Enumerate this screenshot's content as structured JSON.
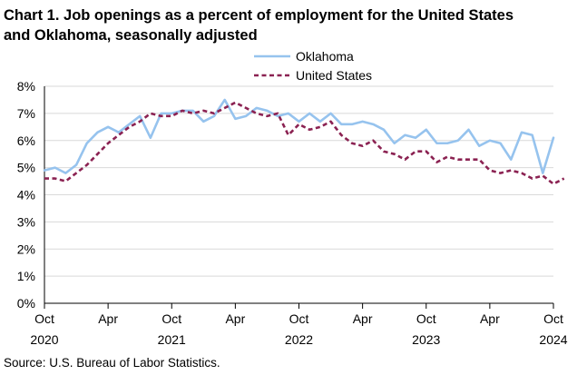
{
  "chart_data": {
    "type": "line",
    "title_line1": "Chart 1. Job openings as a percent of employment for the United States",
    "title_line2": "and Oklahoma, seasonally adjusted",
    "source": "Source: U.S. Bureau of Labor Statistics.",
    "ylim": [
      0,
      8
    ],
    "yticks": [
      "0%",
      "1%",
      "2%",
      "3%",
      "4%",
      "5%",
      "6%",
      "7%",
      "8%"
    ],
    "xticks": [
      {
        "month": "Oct",
        "year": "2020",
        "index": 0
      },
      {
        "month": "Apr",
        "year": "",
        "index": 6
      },
      {
        "month": "Oct",
        "year": "2021",
        "index": 12
      },
      {
        "month": "Apr",
        "year": "",
        "index": 18
      },
      {
        "month": "Oct",
        "year": "2022",
        "index": 24
      },
      {
        "month": "Apr",
        "year": "",
        "index": 30
      },
      {
        "month": "Oct",
        "year": "2023",
        "index": 36
      },
      {
        "month": "Apr",
        "year": "",
        "index": 42
      },
      {
        "month": "Oct",
        "year": "2024",
        "index": 48
      }
    ],
    "grid": true,
    "legend_position": "top-right",
    "series": [
      {
        "name": "Oklahoma",
        "color": "#96c3ee",
        "style": "solid",
        "values": [
          4.9,
          5.0,
          4.8,
          5.1,
          5.9,
          6.3,
          6.5,
          6.3,
          6.6,
          6.9,
          6.1,
          7.0,
          7.0,
          7.1,
          7.1,
          6.7,
          6.9,
          7.5,
          6.8,
          6.9,
          7.2,
          7.1,
          6.9,
          7.0,
          6.7,
          7.0,
          6.7,
          7.0,
          6.6,
          6.6,
          6.7,
          6.6,
          6.4,
          5.9,
          6.2,
          6.1,
          6.4,
          5.9,
          5.9,
          6.0,
          6.4,
          5.8,
          6.0,
          5.9,
          5.3,
          6.3,
          6.2,
          4.8,
          6.1
        ]
      },
      {
        "name": "United States",
        "color": "#8b2252",
        "style": "dashed",
        "values": [
          4.6,
          4.6,
          4.5,
          4.8,
          5.1,
          5.5,
          5.9,
          6.2,
          6.5,
          6.7,
          7.0,
          6.9,
          6.9,
          7.1,
          7.0,
          7.1,
          7.0,
          7.2,
          7.4,
          7.2,
          7.0,
          6.9,
          7.0,
          6.2,
          6.6,
          6.4,
          6.5,
          6.7,
          6.2,
          5.9,
          5.8,
          6.0,
          5.6,
          5.5,
          5.3,
          5.6,
          5.6,
          5.2,
          5.4,
          5.3,
          5.3,
          5.3,
          4.9,
          4.8,
          4.9,
          4.8,
          4.6,
          4.7,
          4.4,
          4.6
        ]
      }
    ]
  }
}
